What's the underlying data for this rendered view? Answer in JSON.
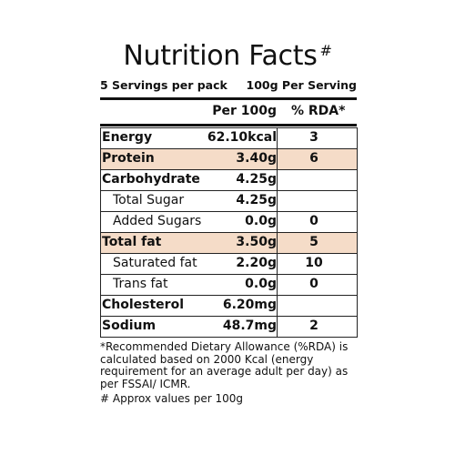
{
  "title": "Nutrition Facts",
  "title_mark": "#",
  "servings": "5 Servings per pack",
  "serving_size": "100g Per Serving",
  "columns": {
    "amount": "Per 100g",
    "rda": "% RDA*"
  },
  "rows": [
    {
      "name": "Energy",
      "value": "62.10kcal",
      "rda": "3",
      "bold": true,
      "indent": false,
      "highlight": false
    },
    {
      "name": "Protein",
      "value": "3.40g",
      "rda": "6",
      "bold": true,
      "indent": false,
      "highlight": true
    },
    {
      "name": "Carbohydrate",
      "value": "4.25g",
      "rda": "",
      "bold": true,
      "indent": false,
      "highlight": false
    },
    {
      "name": "Total Sugar",
      "value": "4.25g",
      "rda": "",
      "bold": false,
      "indent": true,
      "highlight": false
    },
    {
      "name": "Added Sugars",
      "value": "0.0g",
      "rda": "0",
      "bold": false,
      "indent": true,
      "highlight": false
    },
    {
      "name": "Total fat",
      "value": "3.50g",
      "rda": "5",
      "bold": true,
      "indent": false,
      "highlight": true
    },
    {
      "name": "Saturated fat",
      "value": "2.20g",
      "rda": "10",
      "bold": false,
      "indent": true,
      "highlight": false
    },
    {
      "name": "Trans fat",
      "value": "0.0g",
      "rda": "0",
      "bold": false,
      "indent": true,
      "highlight": false
    },
    {
      "name": "Cholesterol",
      "value": "6.20mg",
      "rda": "",
      "bold": true,
      "indent": false,
      "highlight": false
    },
    {
      "name": "Sodium",
      "value": "48.7mg",
      "rda": "2",
      "bold": true,
      "indent": false,
      "highlight": false
    }
  ],
  "footnote": "*Recommended Dietary Allowance (%RDA) is calculated based on 2000 Kcal (energy requirement for an average adult per day) as per FSSAI/ ICMR.",
  "footnote2": "# Approx values per 100g",
  "colors": {
    "highlight": "#f5dcc8",
    "text": "#111111"
  }
}
